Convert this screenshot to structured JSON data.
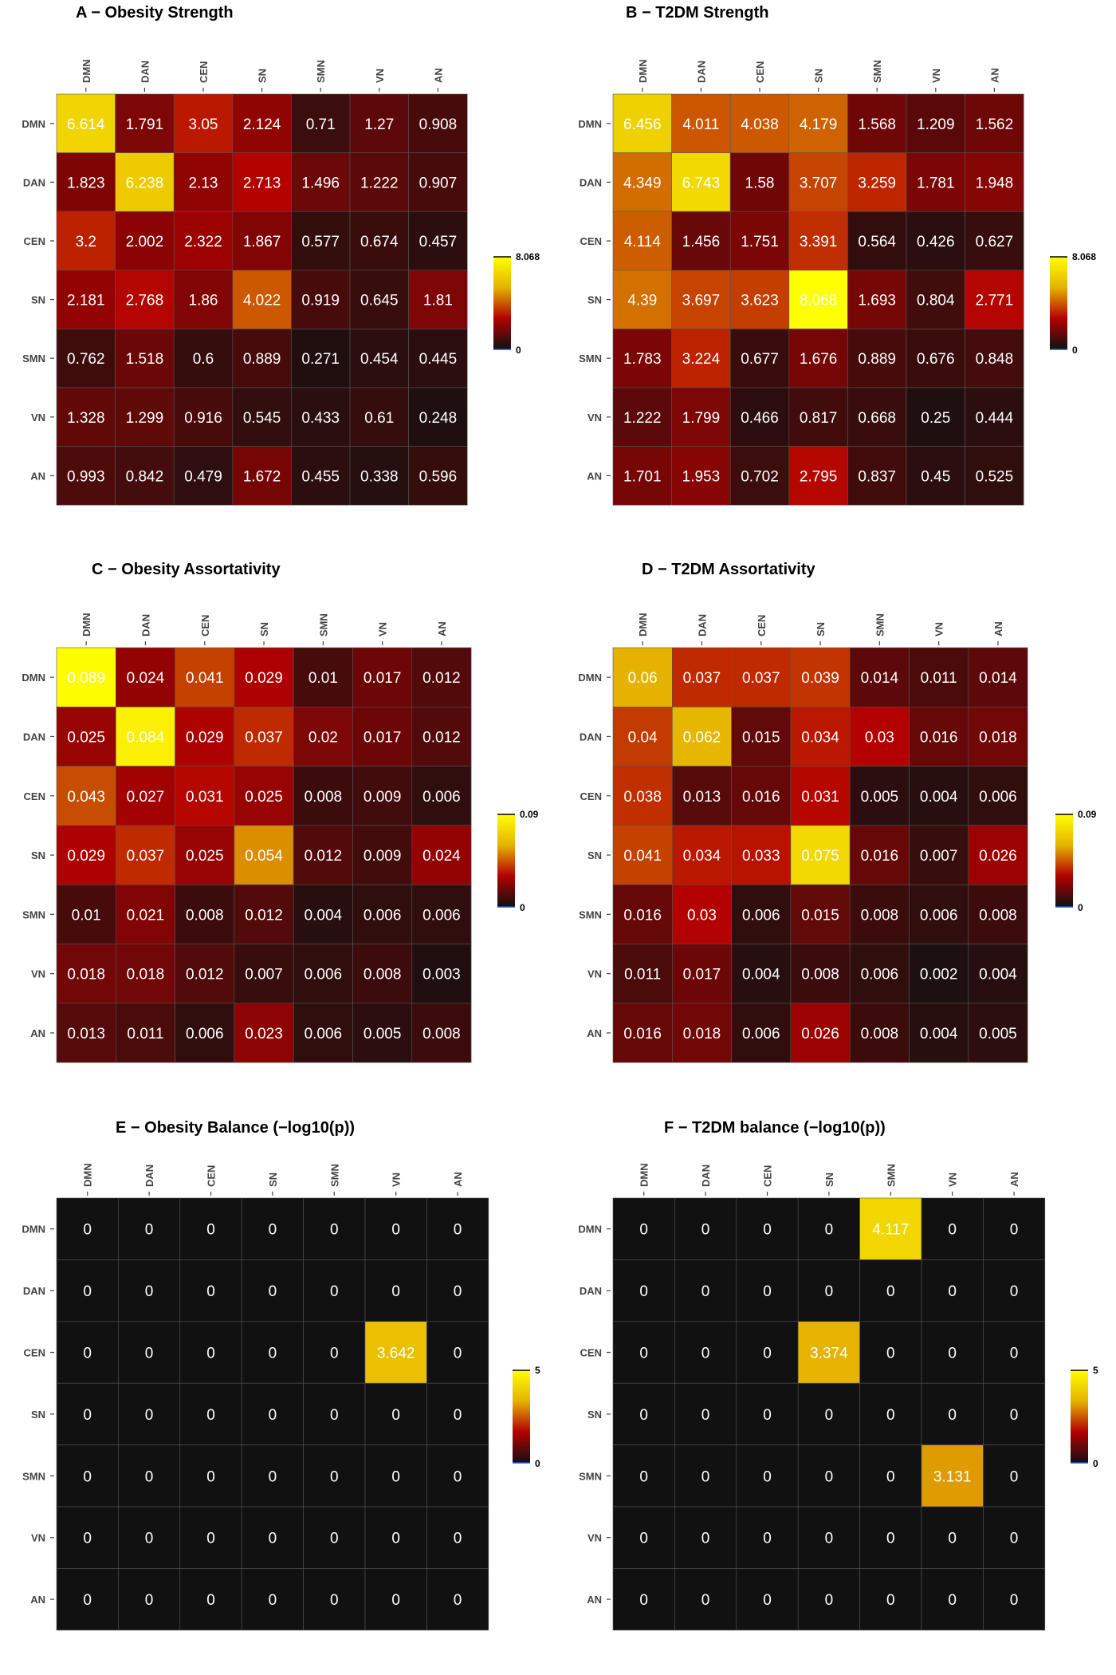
{
  "chart_data": [
    {
      "type": "heatmap",
      "title": "A − Obesity Strength",
      "rows": [
        "DMN",
        "DAN",
        "CEN",
        "SN",
        "SMN",
        "VN",
        "AN"
      ],
      "columns": [
        "DMN",
        "DAN",
        "CEN",
        "SN",
        "SMN",
        "VN",
        "AN"
      ],
      "values": [
        [
          6.614,
          1.791,
          3.05,
          2.124,
          0.71,
          1.27,
          0.908
        ],
        [
          1.823,
          6.238,
          2.13,
          2.713,
          1.496,
          1.222,
          0.907
        ],
        [
          3.2,
          2.002,
          2.322,
          1.867,
          0.577,
          0.674,
          0.457
        ],
        [
          2.181,
          2.768,
          1.86,
          4.022,
          0.919,
          0.645,
          1.81
        ],
        [
          0.762,
          1.518,
          0.6,
          0.889,
          0.271,
          0.454,
          0.445
        ],
        [
          1.328,
          1.299,
          0.916,
          0.545,
          0.433,
          0.61,
          0.248
        ],
        [
          0.993,
          0.842,
          0.479,
          1.672,
          0.455,
          0.338,
          0.596
        ]
      ],
      "labels": [
        [
          "6.614",
          "1.791",
          "3.05",
          "2.124",
          "0.71",
          "1.27",
          "0.908"
        ],
        [
          "1.823",
          "6.238",
          "2.13",
          "2.713",
          "1.496",
          "1.222",
          "0.907"
        ],
        [
          "3.2",
          "2.002",
          "2.322",
          "1.867",
          "0.577",
          "0.674",
          "0.457"
        ],
        [
          "2.181",
          "2.768",
          "1.86",
          "4.022",
          "0.919",
          "0.645",
          "1.81"
        ],
        [
          "0.762",
          "1.518",
          "0.6",
          "0.889",
          "0.271",
          "0.454",
          "0.445"
        ],
        [
          "1.328",
          "1.299",
          "0.916",
          "0.545",
          "0.433",
          "0.61",
          "0.248"
        ],
        [
          "0.993",
          "0.842",
          "0.479",
          "1.672",
          "0.455",
          "0.338",
          "0.596"
        ]
      ],
      "scale": {
        "min": 0,
        "max": 8.068,
        "min_label": "0",
        "max_label": "8.068"
      },
      "legend": "right"
    },
    {
      "type": "heatmap",
      "title": "B − T2DM Strength",
      "rows": [
        "DMN",
        "DAN",
        "CEN",
        "SN",
        "SMN",
        "VN",
        "AN"
      ],
      "columns": [
        "DMN",
        "DAN",
        "CEN",
        "SN",
        "SMN",
        "VN",
        "AN"
      ],
      "values": [
        [
          6.456,
          4.011,
          4.038,
          4.179,
          1.568,
          1.209,
          1.562
        ],
        [
          4.349,
          6.743,
          1.58,
          3.707,
          3.259,
          1.781,
          1.948
        ],
        [
          4.114,
          1.456,
          1.751,
          3.391,
          0.564,
          0.426,
          0.627
        ],
        [
          4.39,
          3.697,
          3.623,
          8.068,
          1.693,
          0.804,
          2.771
        ],
        [
          1.783,
          3.224,
          0.677,
          1.676,
          0.889,
          0.676,
          0.848
        ],
        [
          1.222,
          1.799,
          0.466,
          0.817,
          0.668,
          0.25,
          0.444
        ],
        [
          1.701,
          1.953,
          0.702,
          2.795,
          0.837,
          0.45,
          0.525
        ]
      ],
      "labels": [
        [
          "6.456",
          "4.011",
          "4.038",
          "4.179",
          "1.568",
          "1.209",
          "1.562"
        ],
        [
          "4.349",
          "6.743",
          "1.58",
          "3.707",
          "3.259",
          "1.781",
          "1.948"
        ],
        [
          "4.114",
          "1.456",
          "1.751",
          "3.391",
          "0.564",
          "0.426",
          "0.627"
        ],
        [
          "4.39",
          "3.697",
          "3.623",
          "8.068",
          "1.693",
          "0.804",
          "2.771"
        ],
        [
          "1.783",
          "3.224",
          "0.677",
          "1.676",
          "0.889",
          "0.676",
          "0.848"
        ],
        [
          "1.222",
          "1.799",
          "0.466",
          "0.817",
          "0.668",
          "0.25",
          "0.444"
        ],
        [
          "1.701",
          "1.953",
          "0.702",
          "2.795",
          "0.837",
          "0.45",
          "0.525"
        ]
      ],
      "scale": {
        "min": 0,
        "max": 8.068,
        "min_label": "0",
        "max_label": "8.068"
      },
      "legend": "right"
    },
    {
      "type": "heatmap",
      "title": "C − Obesity Assortativity",
      "rows": [
        "DMN",
        "DAN",
        "CEN",
        "SN",
        "SMN",
        "VN",
        "AN"
      ],
      "columns": [
        "DMN",
        "DAN",
        "CEN",
        "SN",
        "SMN",
        "VN",
        "AN"
      ],
      "values": [
        [
          0.089,
          0.024,
          0.041,
          0.029,
          0.01,
          0.017,
          0.012
        ],
        [
          0.025,
          0.084,
          0.029,
          0.037,
          0.02,
          0.017,
          0.012
        ],
        [
          0.043,
          0.027,
          0.031,
          0.025,
          0.008,
          0.009,
          0.006
        ],
        [
          0.029,
          0.037,
          0.025,
          0.054,
          0.012,
          0.009,
          0.024
        ],
        [
          0.01,
          0.021,
          0.008,
          0.012,
          0.004,
          0.006,
          0.006
        ],
        [
          0.018,
          0.018,
          0.012,
          0.007,
          0.006,
          0.008,
          0.003
        ],
        [
          0.013,
          0.011,
          0.006,
          0.023,
          0.006,
          0.005,
          0.008
        ]
      ],
      "labels": [
        [
          "0.089",
          "0.024",
          "0.041",
          "0.029",
          "0.01",
          "0.017",
          "0.012"
        ],
        [
          "0.025",
          "0.084",
          "0.029",
          "0.037",
          "0.02",
          "0.017",
          "0.012"
        ],
        [
          "0.043",
          "0.027",
          "0.031",
          "0.025",
          "0.008",
          "0.009",
          "0.006"
        ],
        [
          "0.029",
          "0.037",
          "0.025",
          "0.054",
          "0.012",
          "0.009",
          "0.024"
        ],
        [
          "0.01",
          "0.021",
          "0.008",
          "0.012",
          "0.004",
          "0.006",
          "0.006"
        ],
        [
          "0.018",
          "0.018",
          "0.012",
          "0.007",
          "0.006",
          "0.008",
          "0.003"
        ],
        [
          "0.013",
          "0.011",
          "0.006",
          "0.023",
          "0.006",
          "0.005",
          "0.008"
        ]
      ],
      "scale": {
        "min": 0,
        "max": 0.09,
        "min_label": "0",
        "max_label": "0.09"
      },
      "legend": "right"
    },
    {
      "type": "heatmap",
      "title": "D − T2DM Assortativity",
      "rows": [
        "DMN",
        "DAN",
        "CEN",
        "SN",
        "SMN",
        "VN",
        "AN"
      ],
      "columns": [
        "DMN",
        "DAN",
        "CEN",
        "SN",
        "SMN",
        "VN",
        "AN"
      ],
      "values": [
        [
          0.06,
          0.037,
          0.037,
          0.039,
          0.014,
          0.011,
          0.014
        ],
        [
          0.04,
          0.062,
          0.015,
          0.034,
          0.03,
          0.016,
          0.018
        ],
        [
          0.038,
          0.013,
          0.016,
          0.031,
          0.005,
          0.004,
          0.006
        ],
        [
          0.041,
          0.034,
          0.033,
          0.075,
          0.016,
          0.007,
          0.026
        ],
        [
          0.016,
          0.03,
          0.006,
          0.015,
          0.008,
          0.006,
          0.008
        ],
        [
          0.011,
          0.017,
          0.004,
          0.008,
          0.006,
          0.002,
          0.004
        ],
        [
          0.016,
          0.018,
          0.006,
          0.026,
          0.008,
          0.004,
          0.005
        ]
      ],
      "labels": [
        [
          "0.06",
          "0.037",
          "0.037",
          "0.039",
          "0.014",
          "0.011",
          "0.014"
        ],
        [
          "0.04",
          "0.062",
          "0.015",
          "0.034",
          "0.03",
          "0.016",
          "0.018"
        ],
        [
          "0.038",
          "0.013",
          "0.016",
          "0.031",
          "0.005",
          "0.004",
          "0.006"
        ],
        [
          "0.041",
          "0.034",
          "0.033",
          "0.075",
          "0.016",
          "0.007",
          "0.026"
        ],
        [
          "0.016",
          "0.03",
          "0.006",
          "0.015",
          "0.008",
          "0.006",
          "0.008"
        ],
        [
          "0.011",
          "0.017",
          "0.004",
          "0.008",
          "0.006",
          "0.002",
          "0.004"
        ],
        [
          "0.016",
          "0.018",
          "0.006",
          "0.026",
          "0.008",
          "0.004",
          "0.005"
        ]
      ],
      "scale": {
        "min": 0,
        "max": 0.09,
        "min_label": "0",
        "max_label": "0.09"
      },
      "legend": "right"
    },
    {
      "type": "heatmap",
      "title": "E − Obesity Balance (−log10(p))",
      "rows": [
        "DMN",
        "DAN",
        "CEN",
        "SN",
        "SMN",
        "VN",
        "AN"
      ],
      "columns": [
        "DMN",
        "DAN",
        "CEN",
        "SN",
        "SMN",
        "VN",
        "AN"
      ],
      "values": [
        [
          0,
          0,
          0,
          0,
          0,
          0,
          0
        ],
        [
          0,
          0,
          0,
          0,
          0,
          0,
          0
        ],
        [
          0,
          0,
          0,
          0,
          0,
          3.642,
          0
        ],
        [
          0,
          0,
          0,
          0,
          0,
          0,
          0
        ],
        [
          0,
          0,
          0,
          0,
          0,
          0,
          0
        ],
        [
          0,
          0,
          0,
          0,
          0,
          0,
          0
        ],
        [
          0,
          0,
          0,
          0,
          0,
          0,
          0
        ]
      ],
      "labels": [
        [
          "0",
          "0",
          "0",
          "0",
          "0",
          "0",
          "0"
        ],
        [
          "0",
          "0",
          "0",
          "0",
          "0",
          "0",
          "0"
        ],
        [
          "0",
          "0",
          "0",
          "0",
          "0",
          "3.642",
          "0"
        ],
        [
          "0",
          "0",
          "0",
          "0",
          "0",
          "0",
          "0"
        ],
        [
          "0",
          "0",
          "0",
          "0",
          "0",
          "0",
          "0"
        ],
        [
          "0",
          "0",
          "0",
          "0",
          "0",
          "0",
          "0"
        ],
        [
          "0",
          "0",
          "0",
          "0",
          "0",
          "0",
          "0"
        ]
      ],
      "scale": {
        "min": 0,
        "max": 5,
        "min_label": "0",
        "max_label": "5"
      },
      "legend": "right"
    },
    {
      "type": "heatmap",
      "title": "F − T2DM balance (−log10(p))",
      "rows": [
        "DMN",
        "DAN",
        "CEN",
        "SN",
        "SMN",
        "VN",
        "AN"
      ],
      "columns": [
        "DMN",
        "DAN",
        "CEN",
        "SN",
        "SMN",
        "VN",
        "AN"
      ],
      "values": [
        [
          0,
          0,
          0,
          0,
          4.117,
          0,
          0
        ],
        [
          0,
          0,
          0,
          0,
          0,
          0,
          0
        ],
        [
          0,
          0,
          0,
          3.374,
          0,
          0,
          0
        ],
        [
          0,
          0,
          0,
          0,
          0,
          0,
          0
        ],
        [
          0,
          0,
          0,
          0,
          0,
          3.131,
          0
        ],
        [
          0,
          0,
          0,
          0,
          0,
          0,
          0
        ],
        [
          0,
          0,
          0,
          0,
          0,
          0,
          0
        ]
      ],
      "labels": [
        [
          "0",
          "0",
          "0",
          "0",
          "4.117",
          "0",
          "0"
        ],
        [
          "0",
          "0",
          "0",
          "0",
          "0",
          "0",
          "0"
        ],
        [
          "0",
          "0",
          "0",
          "3.374",
          "0",
          "0",
          "0"
        ],
        [
          "0",
          "0",
          "0",
          "0",
          "0",
          "0",
          "0"
        ],
        [
          "0",
          "0",
          "0",
          "0",
          "0",
          "3.131",
          "0"
        ],
        [
          "0",
          "0",
          "0",
          "0",
          "0",
          "0",
          "0"
        ],
        [
          "0",
          "0",
          "0",
          "0",
          "0",
          "0",
          "0"
        ]
      ],
      "scale": {
        "min": 0,
        "max": 5,
        "min_label": "0",
        "max_label": "5"
      },
      "legend": "right"
    }
  ],
  "colors": {
    "gradient": [
      "#111111",
      "#b30000",
      "#e5b200",
      "#ffff00"
    ],
    "cell_text": "#ffffff",
    "grid_line": "#555555",
    "legend_zero_tick": "#2255cc"
  }
}
